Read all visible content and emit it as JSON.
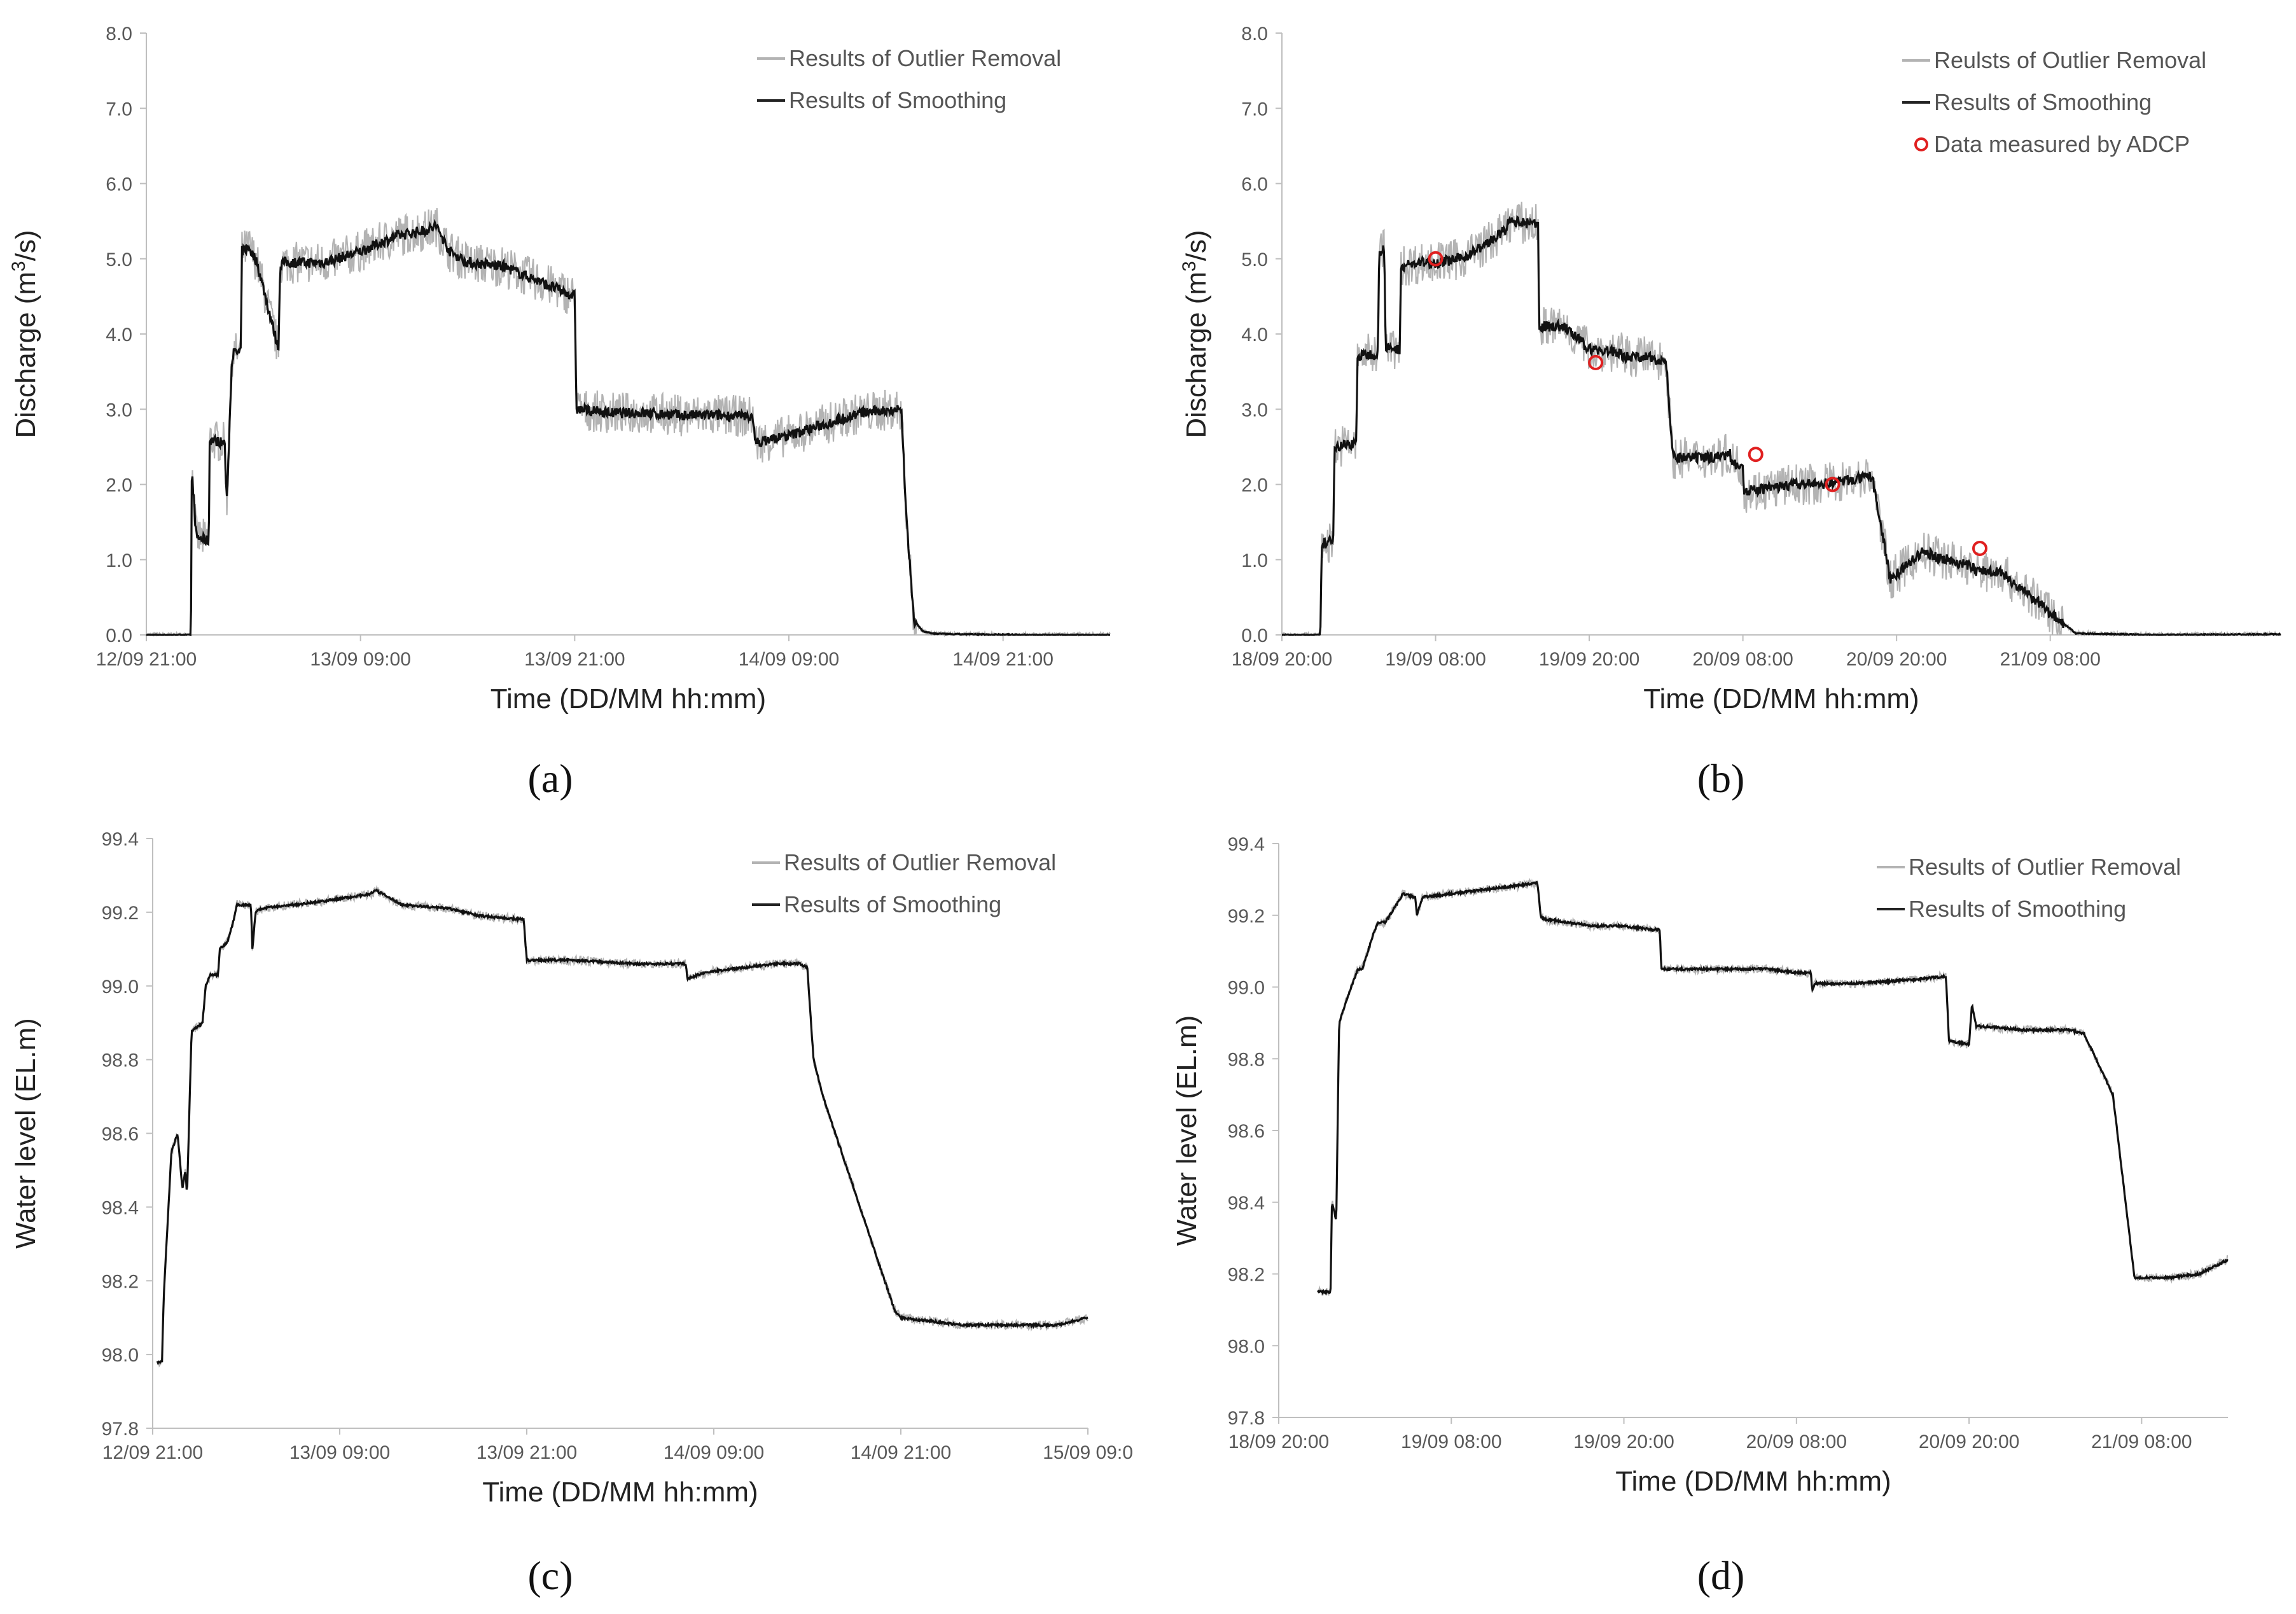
{
  "chart_data": [
    {
      "type": "line",
      "panel": "(a)",
      "xlabel": "Time (DD/MM hh:mm)",
      "ylabel": "Discharge (m³/s)",
      "ylim": [
        0,
        8
      ],
      "yticks": [
        "0.0",
        "1.0",
        "2.0",
        "3.0",
        "4.0",
        "5.0",
        "6.0",
        "7.0",
        "8.0"
      ],
      "xlim": [
        0,
        54
      ],
      "xticks": [
        {
          "x": 0,
          "label": "12/09 21:00"
        },
        {
          "x": 12,
          "label": "13/09 09:00"
        },
        {
          "x": 24,
          "label": "13/09 21:00"
        },
        {
          "x": 36,
          "label": "14/09 09:00"
        },
        {
          "x": 48,
          "label": "14/09 21:00"
        }
      ],
      "legend": [
        "Results of Outlier Removal",
        "Results of Smoothing"
      ],
      "legend_position": "top-right",
      "series": [
        {
          "name": "Results of Smoothing",
          "x": [
            0,
            2.5,
            2.55,
            2.8,
            3.5,
            3.55,
            4.4,
            4.5,
            4.8,
            4.9,
            5.3,
            5.35,
            5.8,
            5.85,
            6.1,
            6.2,
            7.4,
            7.5,
            7.6,
            8,
            10,
            12,
            14,
            16,
            16.2,
            17,
            18,
            20,
            22,
            24,
            24.1,
            26,
            28,
            30,
            32,
            34,
            34.1,
            35,
            36,
            38,
            40,
            42,
            42.3,
            42.6,
            43,
            43.5,
            44,
            45,
            50,
            54
          ],
          "y": [
            0,
            0,
            2.2,
            1.3,
            1.25,
            2.6,
            2.55,
            1.7,
            3.7,
            3.75,
            3.75,
            5.1,
            5.15,
            5.1,
            5.0,
            4.95,
            3.8,
            4.9,
            4.95,
            4.95,
            4.95,
            5.1,
            5.3,
            5.4,
            5.45,
            5.1,
            4.95,
            4.9,
            4.7,
            4.5,
            3.0,
            2.95,
            2.95,
            2.92,
            2.92,
            2.9,
            2.55,
            2.6,
            2.65,
            2.8,
            2.95,
            3.0,
            3.0,
            1.5,
            0.2,
            0.05,
            0.02,
            0.01,
            0,
            0
          ]
        }
      ]
    },
    {
      "type": "line",
      "panel": "(b)",
      "xlabel": "Time (DD/MM hh:mm)",
      "ylabel": "Discharge (m³/s)",
      "ylim": [
        0,
        8
      ],
      "yticks": [
        "0.0",
        "1.0",
        "2.0",
        "3.0",
        "4.0",
        "5.0",
        "6.0",
        "7.0",
        "8.0"
      ],
      "xlim": [
        0,
        78
      ],
      "xticks": [
        {
          "x": 0,
          "label": "18/09 20:00"
        },
        {
          "x": 12,
          "label": "19/09 08:00"
        },
        {
          "x": 24,
          "label": "19/09 20:00"
        },
        {
          "x": 36,
          "label": "20/09 08:00"
        },
        {
          "x": 48,
          "label": "20/09 20:00"
        },
        {
          "x": 60,
          "label": "21/09 08:00"
        }
      ],
      "legend": [
        "Reulsts of Outlier Removal",
        "Results of Smoothing",
        "Data measured by ADCP"
      ],
      "legend_position": "top-right",
      "series": [
        {
          "name": "Results of Smoothing",
          "x": [
            0,
            3,
            3.1,
            4,
            4.1,
            5.8,
            5.9,
            7.5,
            7.6,
            8,
            8.1,
            9.2,
            9.3,
            11,
            12,
            14,
            16,
            17.6,
            17.7,
            20,
            20.1,
            22,
            24,
            26.5,
            26.6,
            28,
            30,
            30.5,
            30.6,
            33,
            35,
            35.1,
            36,
            36.1,
            38,
            40,
            42,
            44,
            46,
            46.1,
            47.5,
            47.6,
            50,
            52,
            54,
            54.1,
            56,
            62,
            68,
            78
          ],
          "y": [
            0,
            0,
            1.2,
            1.25,
            2.5,
            2.55,
            3.7,
            3.75,
            5.1,
            5.15,
            3.8,
            3.8,
            4.9,
            4.95,
            4.95,
            5.0,
            5.2,
            5.4,
            5.5,
            5.45,
            4.1,
            4.1,
            3.8,
            3.75,
            3.7,
            3.7,
            3.65,
            2.4,
            2.35,
            2.35,
            2.4,
            2.3,
            2.25,
            1.9,
            1.95,
            2.0,
            2.0,
            2.05,
            2.1,
            2.1,
            0.75,
            0.75,
            1.1,
            1.0,
            0.9,
            0.85,
            0.85,
            0.02,
            0,
            0.01
          ]
        },
        {
          "name": "Data measured by ADCP",
          "x": [
            12,
            24.5,
            37,
            43,
            54.5
          ],
          "y": [
            5.0,
            3.62,
            2.4,
            2.0,
            1.15
          ]
        }
      ]
    },
    {
      "type": "line",
      "panel": "(c)",
      "xlabel": "Time (DD/MM hh:mm)",
      "ylabel": "Water level (EL.m)",
      "ylim": [
        97.8,
        99.4
      ],
      "yticks": [
        "97.8",
        "98.0",
        "98.2",
        "98.4",
        "98.6",
        "98.8",
        "99.0",
        "99.2",
        "99.4"
      ],
      "xlim": [
        0,
        60
      ],
      "xticks": [
        {
          "x": 0,
          "label": "12/09 21:00"
        },
        {
          "x": 12,
          "label": "13/09 09:00"
        },
        {
          "x": 24,
          "label": "13/09 21:00"
        },
        {
          "x": 36,
          "label": "14/09 09:00"
        },
        {
          "x": 48,
          "label": "14/09 21:00"
        },
        {
          "x": 60,
          "label": "15/09 09:0"
        }
      ],
      "legend": [
        "Results of Outlier Removal",
        "Results of Smoothing"
      ],
      "legend_position": "top-right",
      "series": [
        {
          "name": "Results of Smoothing",
          "x": [
            0.3,
            0.6,
            0.7,
            1.2,
            1.6,
            1.9,
            2.1,
            2.2,
            2.5,
            2.6,
            3.2,
            3.4,
            3.7,
            4.2,
            4.3,
            4.8,
            5.2,
            5.4,
            5.8,
            6.3,
            6.4,
            6.6,
            7,
            9,
            11,
            14,
            14.3,
            16,
            19,
            21,
            23.8,
            24,
            27,
            31,
            33,
            34.2,
            34.3,
            35,
            36,
            38,
            40,
            41.5,
            42,
            42.4,
            43,
            47.6,
            48,
            50,
            52,
            54,
            56,
            58,
            59,
            60
          ],
          "y": [
            97.98,
            97.98,
            98.15,
            98.55,
            98.6,
            98.45,
            98.5,
            98.43,
            98.88,
            98.88,
            98.9,
            99.0,
            99.03,
            99.03,
            99.1,
            99.12,
            99.18,
            99.22,
            99.22,
            99.22,
            99.1,
            99.2,
            99.21,
            99.22,
            99.23,
            99.25,
            99.26,
            99.22,
            99.21,
            99.19,
            99.18,
            99.07,
            99.07,
            99.06,
            99.06,
            99.06,
            99.02,
            99.03,
            99.04,
            99.05,
            99.06,
            99.06,
            99.05,
            98.8,
            98.7,
            98.12,
            98.1,
            98.09,
            98.08,
            98.08,
            98.08,
            98.08,
            98.09,
            98.1
          ]
        }
      ]
    },
    {
      "type": "line",
      "panel": "(d)",
      "xlabel": "Time (DD/MM hh:mm)",
      "ylabel": "Water level (EL.m)",
      "ylim": [
        97.8,
        99.4
      ],
      "yticks": [
        "97.8",
        "98.0",
        "98.2",
        "98.4",
        "98.6",
        "98.8",
        "99.0",
        "99.2",
        "99.4"
      ],
      "xlim": [
        0,
        66
      ],
      "xticks": [
        {
          "x": 0,
          "label": "18/09 20:00"
        },
        {
          "x": 12,
          "label": "19/09 08:00"
        },
        {
          "x": 24,
          "label": "19/09 20:00"
        },
        {
          "x": 36,
          "label": "20/09 08:00"
        },
        {
          "x": 48,
          "label": "20/09 20:00"
        },
        {
          "x": 60,
          "label": "21/09 08:00"
        }
      ],
      "legend": [
        "Results of Outlier Removal",
        "Results of Smoothing"
      ],
      "legend_position": "top-right",
      "series": [
        {
          "name": "Results of Smoothing",
          "x": [
            2.7,
            3.6,
            3.7,
            4,
            4.2,
            4.6,
            5.5,
            5.8,
            6.6,
            6.9,
            7.4,
            8.5,
            8.6,
            9.5,
            9.6,
            10,
            12,
            14,
            16,
            18,
            18.2,
            18.4,
            20,
            22,
            24,
            26,
            26.5,
            26.6,
            30,
            32,
            34,
            36,
            37,
            37.1,
            37.3,
            40,
            44,
            46.4,
            46.6,
            48,
            48.2,
            48.5,
            49,
            52,
            55,
            56,
            58,
            59.5,
            60,
            62,
            64,
            66
          ],
          "y": [
            98.15,
            98.15,
            98.4,
            98.35,
            98.9,
            98.95,
            99.05,
            99.05,
            99.15,
            99.18,
            99.18,
            99.25,
            99.26,
            99.25,
            99.2,
            99.25,
            99.26,
            99.27,
            99.28,
            99.29,
            99.2,
            99.19,
            99.18,
            99.17,
            99.17,
            99.16,
            99.16,
            99.05,
            99.05,
            99.05,
            99.05,
            99.04,
            99.04,
            98.99,
            99.01,
            99.01,
            99.02,
            99.03,
            98.85,
            98.84,
            98.95,
            98.89,
            98.89,
            98.88,
            98.88,
            98.87,
            98.7,
            98.19,
            98.19,
            98.19,
            98.2,
            98.24
          ]
        }
      ]
    }
  ]
}
